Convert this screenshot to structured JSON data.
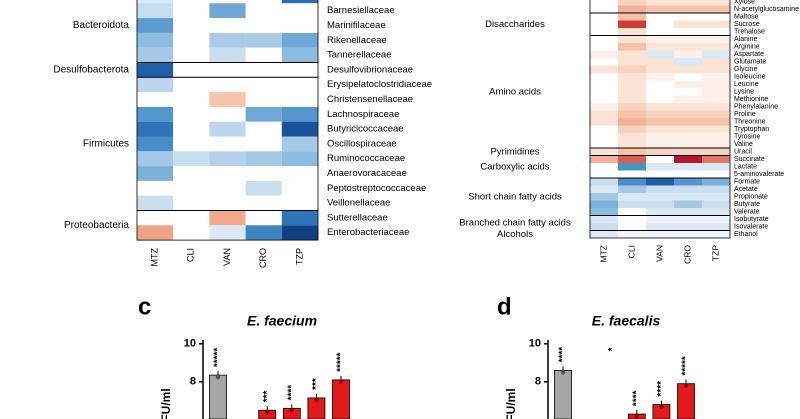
{
  "chart_data": [
    {
      "type": "heatmap",
      "columns": [
        "MTZ",
        "CLI",
        "VAN",
        "CRO",
        "TZP"
      ],
      "groups": [
        {
          "label": "Bacteroidota",
          "rows": [
            {
              "label": null,
              "colors": [
                "#dbe9f6",
                "#ffffff",
                "#ffffff",
                "#ffffff",
                "#2a6db5"
              ]
            },
            {
              "label": "Barnesiellaceae",
              "colors": [
                "#c6dcef",
                "#ffffff",
                "#6ea6d4",
                "#ffffff",
                "#ffffff"
              ]
            },
            {
              "label": "Marinifilaceae",
              "colors": [
                "#5b9bd0",
                "#ffffff",
                "#ffffff",
                "#ffffff",
                "#ffffff"
              ]
            },
            {
              "label": "Rikenellaceae",
              "colors": [
                "#8cbde0",
                "#ffffff",
                "#a9cbe6",
                "#a9cbe6",
                "#6fa8d6"
              ]
            },
            {
              "label": "Tannerellaceae",
              "colors": [
                "#a4c8e6",
                "#ffffff",
                "#c9dff0",
                "#ffffff",
                "#8cbde0"
              ]
            }
          ]
        },
        {
          "label": "Desulfobacterota",
          "rows": [
            {
              "label": "Desulfovibrionaceae",
              "colors": [
                "#1f5fa8",
                "#ffffff",
                "#ffffff",
                "#ffffff",
                "#ffffff"
              ]
            }
          ]
        },
        {
          "label": "Firmicutes",
          "rows": [
            {
              "label": "Erysipelatoclostridiaceae",
              "colors": [
                "#bcd7ed",
                "#ffffff",
                "#ffffff",
                "#ffffff",
                "#ffffff"
              ]
            },
            {
              "label": "Christensenellaceae",
              "colors": [
                "#ffffff",
                "#ffffff",
                "#f7c4ac",
                "#ffffff",
                "#ffffff"
              ]
            },
            {
              "label": "Lachnospiraceae",
              "colors": [
                "#5596cd",
                "#ffffff",
                "#ffffff",
                "#6fa8d6",
                "#5596cd"
              ]
            },
            {
              "label": "Butyricicoccaceae",
              "colors": [
                "#2e74ba",
                "#ffffff",
                "#bcd7ed",
                "#ffffff",
                "#1a539b"
              ]
            },
            {
              "label": "Oscillospiraceae",
              "colors": [
                "#4a8cc8",
                "#ffffff",
                "#ffffff",
                "#ffffff",
                "#a4c8e6"
              ]
            },
            {
              "label": "Ruminococcaceae",
              "colors": [
                "#a4c8e6",
                "#c9dff0",
                "#b3d1ea",
                "#a4c8e6",
                "#8cbde0"
              ]
            },
            {
              "label": "Anaerovoracaceae",
              "colors": [
                "#7ab1da",
                "#ffffff",
                "#ffffff",
                "#ffffff",
                "#ffffff"
              ]
            },
            {
              "label": "Peptostreptococcaceae",
              "colors": [
                "#ffffff",
                "#ffffff",
                "#ffffff",
                "#c9dff0",
                "#ffffff"
              ]
            },
            {
              "label": "Veillonellaceae",
              "colors": [
                "#c9dff0",
                "#ffffff",
                "#ffffff",
                "#ffffff",
                "#ffffff"
              ]
            }
          ]
        },
        {
          "label": "Proteobacteria",
          "rows": [
            {
              "label": "Sutterellaceae",
              "colors": [
                "#ffffff",
                "#ffffff",
                "#f4a98a",
                "#ffffff",
                "#2e74ba"
              ]
            },
            {
              "label": "Enterobacteriaceae",
              "colors": [
                "#f0a285",
                "#ffffff",
                "#dbe9f6",
                "#3d84c3",
                "#123f80"
              ]
            }
          ]
        }
      ]
    },
    {
      "type": "heatmap",
      "columns": [
        "MTZ",
        "CLI",
        "VAN",
        "CRO",
        "TZP"
      ],
      "groups": [
        {
          "label": null,
          "rows": [
            {
              "label": "Xylose",
              "colors": [
                "#ffffff",
                "#f7d2bf",
                "#fbe3d6",
                "#fbe3d6",
                "#fbe3d6"
              ]
            },
            {
              "label": "N-acetylglucosamine",
              "colors": [
                "#ffffff",
                "#f2b29a",
                "#f6c3a8",
                "#f6c3a8",
                "#f6c3a8"
              ]
            }
          ]
        },
        {
          "label": "Disaccharides",
          "rows": [
            {
              "label": "Maltose",
              "colors": [
                "#ffffff",
                "#f6c3a8",
                "#ffffff",
                "#ffffff",
                "#ffffff"
              ]
            },
            {
              "label": "Sucrose",
              "colors": [
                "#ffffff",
                "#cf3b36",
                "#ffffff",
                "#fbe3d6",
                "#fbe3d6"
              ]
            },
            {
              "label": "Trehalose",
              "colors": [
                "#ffffff",
                "#fbe3d6",
                "#ffffff",
                "#ffffff",
                "#ffffff"
              ]
            }
          ]
        },
        {
          "label": "Amino acids",
          "rows": [
            {
              "label": "Alanine",
              "colors": [
                "#ffffff",
                "#fbe3d6",
                "#fdf0e8",
                "#fdf0e8",
                "#fdf0e8"
              ]
            },
            {
              "label": "Arginine",
              "colors": [
                "#ffffff",
                "#f6c3a8",
                "#fbe3d6",
                "#fbe3d6",
                "#fbe3d6"
              ]
            },
            {
              "label": "Aspartate",
              "colors": [
                "#fdf0e8",
                "#fbe3d6",
                "#dbe9f6",
                "#fdf0e8",
                "#dbe9f6"
              ]
            },
            {
              "label": "Glutamate",
              "colors": [
                "#ffffff",
                "#fbe3d6",
                "#fbe3d6",
                "#dbe9f6",
                "#fbe3d6"
              ]
            },
            {
              "label": "Glycine",
              "colors": [
                "#fbe3d6",
                "#f7d2bf",
                "#fbe3d6",
                "#fbe3d6",
                "#fbe3d6"
              ]
            },
            {
              "label": "Isoleucine",
              "colors": [
                "#ffffff",
                "#fbe3d6",
                "#fdf0e8",
                "#ffffff",
                "#fdf0e8"
              ]
            },
            {
              "label": "Leucine",
              "colors": [
                "#ffffff",
                "#fbe3d6",
                "#ffffff",
                "#fdf0e8",
                "#fdf0e8"
              ]
            },
            {
              "label": "Lysine",
              "colors": [
                "#ffffff",
                "#fbe3d6",
                "#ffffff",
                "#ffffff",
                "#fdf0e8"
              ]
            },
            {
              "label": "Methionine",
              "colors": [
                "#ffffff",
                "#fbe3d6",
                "#ffffff",
                "#fdf0e8",
                "#fdf0e8"
              ]
            },
            {
              "label": "Phenylalanine",
              "colors": [
                "#fdf0e8",
                "#f7d2bf",
                "#fbe3d6",
                "#fbe3d6",
                "#fbe3d6"
              ]
            },
            {
              "label": "Proline",
              "colors": [
                "#fbe3d6",
                "#f6c3a8",
                "#f7d2bf",
                "#f7d2bf",
                "#f7d2bf"
              ]
            },
            {
              "label": "Threonine",
              "colors": [
                "#fbe3d6",
                "#f2b29a",
                "#f6c3a8",
                "#f6c3a8",
                "#f6c3a8"
              ]
            },
            {
              "label": "Tryptophan",
              "colors": [
                "#ffffff",
                "#f7d2bf",
                "#fbe3d6",
                "#fbe3d6",
                "#fbe3d6"
              ]
            },
            {
              "label": "Tyrosine",
              "colors": [
                "#ffffff",
                "#fbe3d6",
                "#fdf0e8",
                "#fdf0e8",
                "#fdf0e8"
              ]
            },
            {
              "label": "Valine",
              "colors": [
                "#ffffff",
                "#fbe3d6",
                "#fdf0e8",
                "#fdf0e8",
                "#fdf0e8"
              ]
            }
          ]
        },
        {
          "label": "Pyrimidines",
          "rows": [
            {
              "label": "Uracil",
              "colors": [
                "#fbe3d6",
                "#f6c3a8",
                "#f7d2bf",
                "#f7d2bf",
                "#f7d2bf"
              ]
            }
          ]
        },
        {
          "label": "Carboxylic acids",
          "rows": [
            {
              "label": "Succinate",
              "colors": [
                "#f2b29a",
                "#d6604d",
                "#ffffff",
                "#b2182b",
                "#e07b62"
              ]
            },
            {
              "label": "Lactate",
              "colors": [
                "#ffffff",
                "#4393c3",
                "#dbe9f6",
                "#dbe9f6",
                "#dbe9f6"
              ]
            },
            {
              "label": "5-aminovalerate",
              "colors": [
                "#ffffff",
                "#ffffff",
                "#ffffff",
                "#ffffff",
                "#ffffff"
              ]
            }
          ]
        },
        {
          "label": "Short chain fatty acids",
          "rows": [
            {
              "label": "Formate",
              "colors": [
                "#c9dff0",
                "#4a8cc8",
                "#1f5fa8",
                "#5596cd",
                "#7ab1da"
              ]
            },
            {
              "label": "Acetate",
              "colors": [
                "#dbe9f6",
                "#a4c8e6",
                "#c9dff0",
                "#c9dff0",
                "#c9dff0"
              ]
            },
            {
              "label": "Propionate",
              "colors": [
                "#a4c8e6",
                "#dbe9f6",
                "#dbe9f6",
                "#dbe9f6",
                "#dbe9f6"
              ]
            },
            {
              "label": "Butyrate",
              "colors": [
                "#7ab1da",
                "#c9dff0",
                "#c9dff0",
                "#a4c8e6",
                "#c9dff0"
              ]
            },
            {
              "label": "Valerate",
              "colors": [
                "#8cbde0",
                "#ffffff",
                "#dbe9f6",
                "#dbe9f6",
                "#dbe9f6"
              ]
            }
          ]
        },
        {
          "label": "Branched chain fatty acids",
          "rows": [
            {
              "label": "Isobutyrate",
              "colors": [
                "#dbe9f6",
                "#ffffff",
                "#eef4fa",
                "#eef4fa",
                "#eef4fa"
              ]
            },
            {
              "label": "Isovalerate",
              "colors": [
                "#c9dff0",
                "#ffffff",
                "#dbe9f6",
                "#dbe9f6",
                "#dbe9f6"
              ]
            }
          ]
        },
        {
          "label": "Alcohols",
          "rows": [
            {
              "label": "Ethanol",
              "colors": [
                "#dbe9f6",
                "#eef4fa",
                "#eef4fa",
                "#eef4fa",
                "#eef4fa"
              ]
            }
          ]
        }
      ]
    },
    {
      "type": "bar",
      "panel": "c",
      "title": "E. faecium",
      "ylabel": "FU/ml",
      "categories": [
        null,
        null,
        null,
        null,
        null,
        null
      ],
      "values": [
        8.35,
        null,
        6.5,
        6.6,
        7.15,
        8.1
      ],
      "colors": [
        "#a6a6a6",
        "#e31a1c",
        "#e31a1c",
        "#e31a1c",
        "#e31a1c",
        "#e31a1c"
      ],
      "annotations": [
        "*****",
        null,
        "***",
        "****",
        "***",
        "*****"
      ],
      "ylim": [
        6.04,
        10.2
      ],
      "yticks": [
        8,
        10
      ]
    },
    {
      "type": "bar",
      "panel": "d",
      "title": "E. faecalis",
      "ylabel": "FU/ml",
      "categories": [
        null,
        null,
        null,
        null,
        null,
        null
      ],
      "values": [
        8.6,
        null,
        null,
        6.3,
        6.8,
        7.9
      ],
      "colors": [
        "#a6a6a6",
        "#e31a1c",
        "#e31a1c",
        "#e31a1c",
        "#e31a1c",
        "#e31a1c"
      ],
      "annotations": [
        "****",
        null,
        "*",
        "****",
        "****",
        "*****"
      ],
      "ylim": [
        6.04,
        10.2
      ],
      "yticks": [
        8,
        10
      ]
    }
  ]
}
